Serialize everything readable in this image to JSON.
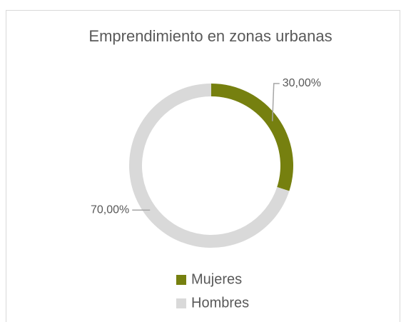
{
  "chart_data": {
    "type": "donut",
    "title": "Emprendimiento en zonas urbanas",
    "categories": [
      "Mujeres",
      "Hombres"
    ],
    "values": [
      30,
      70
    ],
    "value_labels": [
      "30,00%",
      "70,00%"
    ],
    "colors": [
      "#76800f",
      "#d9d9d9"
    ],
    "legend": "bottom"
  }
}
